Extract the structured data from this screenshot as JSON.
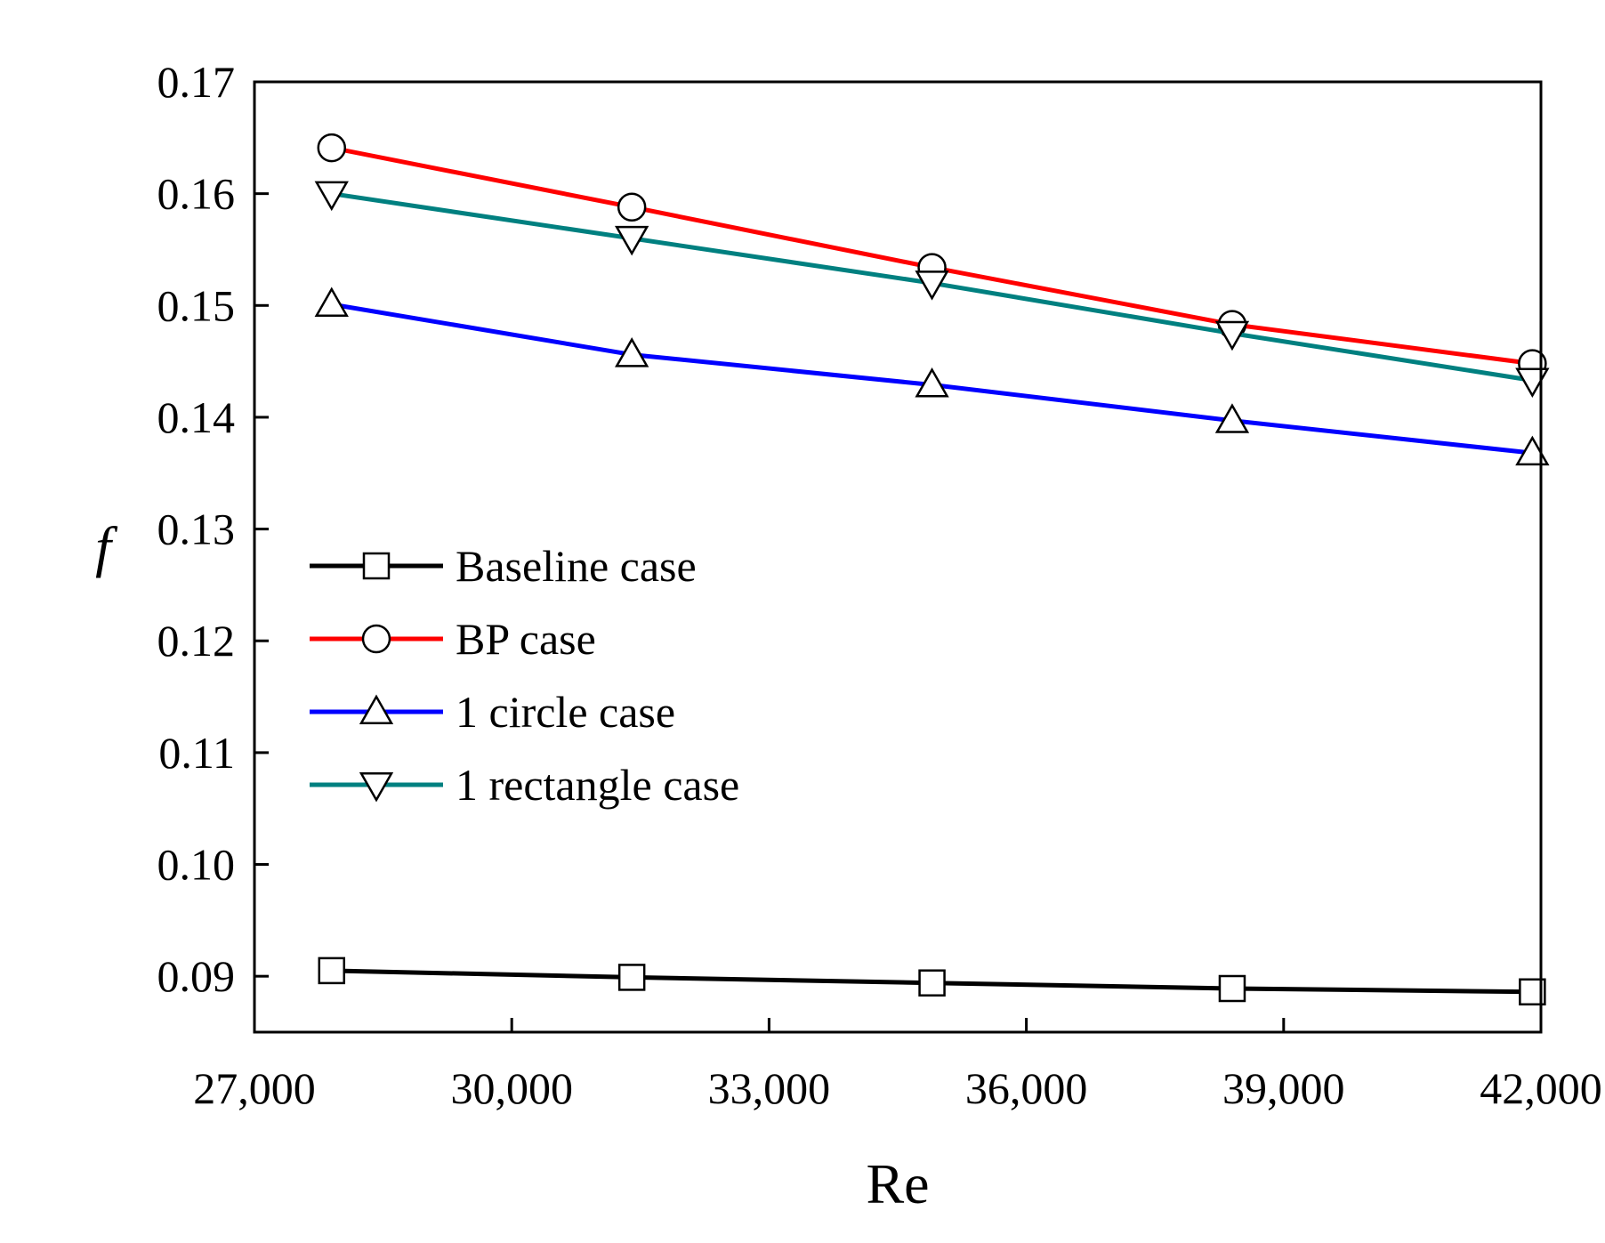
{
  "chart_data": {
    "type": "line",
    "title": "",
    "xlabel": "Re",
    "ylabel": "f",
    "xlim": [
      27000,
      42000
    ],
    "ylim": [
      0.085,
      0.17
    ],
    "xticks": [
      27000,
      30000,
      33000,
      36000,
      39000,
      42000
    ],
    "xtick_labels": [
      "27,000",
      "30,000",
      "33,000",
      "36,000",
      "39,000",
      "42,000"
    ],
    "yticks": [
      0.09,
      0.1,
      0.11,
      0.12,
      0.13,
      0.14,
      0.15,
      0.16,
      0.17
    ],
    "ytick_labels": [
      "0.09",
      "0.10",
      "0.11",
      "0.12",
      "0.13",
      "0.14",
      "0.15",
      "0.16",
      "0.17"
    ],
    "grid": false,
    "legend_position": "center-left",
    "x": [
      27900,
      31400,
      34900,
      38400,
      41900
    ],
    "series": [
      {
        "name": "Baseline case",
        "marker": "square",
        "color": "#000000",
        "values": [
          0.0905,
          0.0899,
          0.0894,
          0.0889,
          0.0886
        ]
      },
      {
        "name": "BP case",
        "marker": "circle",
        "color": "#ff0000",
        "values": [
          0.1641,
          0.1588,
          0.1534,
          0.1483,
          0.1448
        ]
      },
      {
        "name": "1 circle case",
        "marker": "triangle-up",
        "color": "#0000ff",
        "values": [
          0.1501,
          0.1456,
          0.1429,
          0.1397,
          0.1368
        ]
      },
      {
        "name": "1 rectangle case",
        "marker": "triangle-down",
        "color": "#008080",
        "values": [
          0.16,
          0.156,
          0.152,
          0.1475,
          0.1433
        ]
      }
    ]
  }
}
